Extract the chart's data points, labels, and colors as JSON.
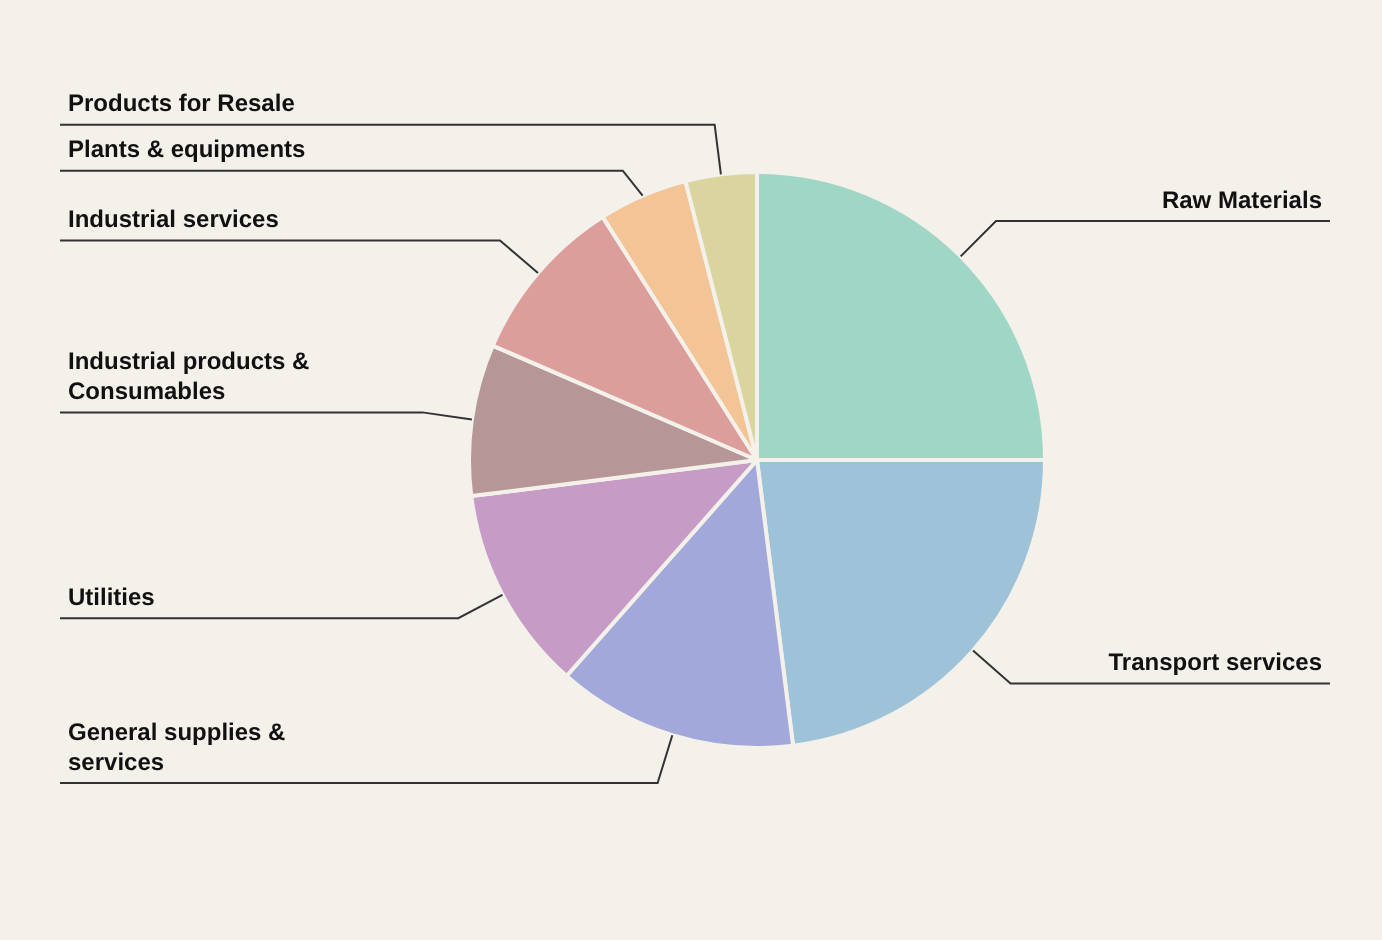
{
  "chart_data": {
    "type": "pie",
    "categories": [
      "Raw Materials",
      "Transport services",
      "General supplies & services",
      "Utilities",
      "Industrial products & Consumables",
      "Industrial services",
      "Plants & equipments",
      "Products for Resale"
    ],
    "values": [
      25,
      23,
      13.5,
      11.5,
      8.5,
      9.5,
      5,
      4
    ],
    "colors": [
      "#a0d6c6",
      "#9ec2d8",
      "#a2a9da",
      "#c69cc6",
      "#b69696",
      "#dc9e9a",
      "#f2c496",
      "#dad59e"
    ],
    "legend": false
  }
}
